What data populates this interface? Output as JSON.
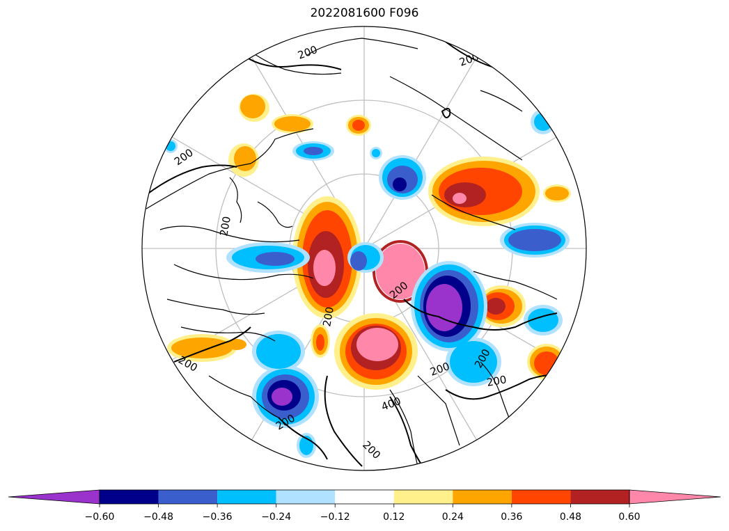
{
  "title": "2022081600 F096",
  "contour_labels": [
    "200",
    "200",
    "200",
    "200",
    "200",
    "200",
    "200",
    "200",
    "200",
    "400",
    "200",
    "200",
    "200"
  ],
  "colorbar": {
    "tick_labels": [
      "−0.60",
      "−0.48",
      "−0.36",
      "−0.24",
      "−0.12",
      "0.12",
      "0.24",
      "0.36",
      "0.48",
      "0.60"
    ],
    "bins": [
      {
        "color": "#9933cc"
      },
      {
        "color": "#00008b"
      },
      {
        "color": "#3a5fcd"
      },
      {
        "color": "#00bfff"
      },
      {
        "color": "#b0e2ff"
      },
      {
        "color": "#ffffff"
      },
      {
        "color": "#fff08c"
      },
      {
        "color": "#ffa500"
      },
      {
        "color": "#ff4500"
      },
      {
        "color": "#b22222"
      },
      {
        "color": "#ff88aa"
      }
    ]
  },
  "colors": {
    "graticule": "#bfbfbf",
    "coastline": "#000000",
    "contour": "#000000"
  }
}
